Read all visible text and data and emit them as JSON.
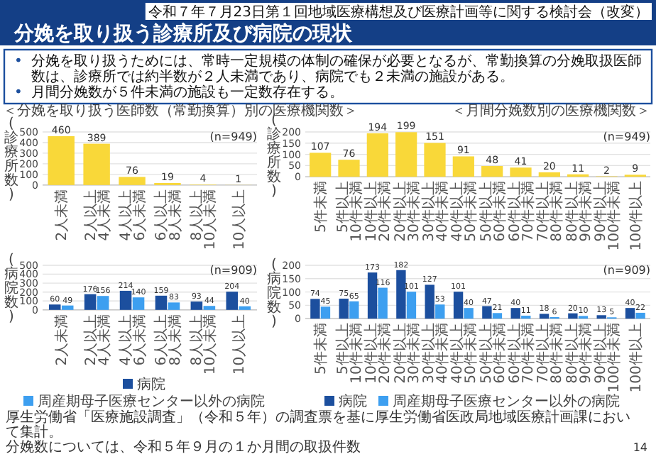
{
  "chart_data": [
    {
      "type": "other",
      "title": "分娩を取り扱う診療所及び病院の現状",
      "annotations": [
        "令和７年７月23日第１回地域医療構想及び医療計画等に関する検討会（改変）",
        "•分娩を取り扱うためには、常時一定規模の体制の確保が必要となるが、常勤換算の分娩取扱医師数は、診療所では約半数が２人未満であり、病院でも２未満の施設がある。",
        "•月間分娩数が５件未満の施設も一定数存在する。",
        "厚生労働省「医療施設調査」（令和５年）の調査票を基に厚生労働省医政局地域医療計画課において集計。",
        "分娩数については、令和５年９月の１か月間の取扱件数",
        "14"
      ]
    },
    {
      "type": "bar",
      "title": "＜分娩を取り扱う医師数（常勤換算）別の医療機関数＞",
      "ylabel": "(診療所数)",
      "categories": [
        "2人未満",
        "2人以上\n4人未満",
        "4人以上\n6人未満",
        "6人以上\n8人未満",
        "8人以上\n10人未満",
        "10人以上"
      ],
      "values": [
        460,
        389,
        76,
        19,
        4,
        1
      ],
      "color": "#f9d839",
      "ylim": [
        0,
        500
      ],
      "yticks": [
        0,
        100,
        200,
        300,
        400,
        500
      ],
      "grid": "y",
      "data_labels": true,
      "annotations": [
        "(n=949)"
      ]
    },
    {
      "type": "bar",
      "title": "＜月間分娩数別の医療機関数＞",
      "ylabel": "(診療所数)",
      "categories": [
        "5件未満",
        "5件以上\n10件未満",
        "10件以上\n20件未満",
        "20件以上\n30件未満",
        "30件以上\n40件未満",
        "40件以上\n50件未満",
        "50件以上\n60件未満",
        "60件以上\n70件未満",
        "70件以上\n80件未満",
        "80件以上\n90件未満",
        "90件以上\n100件未満",
        "100件以上"
      ],
      "values": [
        107,
        76,
        194,
        199,
        151,
        91,
        48,
        41,
        20,
        11,
        2,
        9
      ],
      "color": "#f9d839",
      "ylim": [
        0,
        200
      ],
      "yticks": [
        0,
        50,
        100,
        150,
        200
      ],
      "grid": "y",
      "data_labels": true,
      "annotations": [
        "(n=949)"
      ]
    },
    {
      "type": "bar",
      "ylabel": "(病院数)",
      "categories": [
        "2人未満",
        "2人以上\n4人未満",
        "4人以上\n6人未満",
        "6人以上\n8人未満",
        "8人以上\n10人未満",
        "10人以上"
      ],
      "series": [
        {
          "name": "病院",
          "color": "#1c4f9e",
          "values": [
            60,
            176,
            214,
            159,
            93,
            204
          ]
        },
        {
          "name": "周産期母子医療センター以外の病院",
          "color": "#3d9ff0",
          "values": [
            49,
            156,
            140,
            83,
            44,
            40
          ]
        }
      ],
      "ylim": [
        0,
        500
      ],
      "yticks": [
        0,
        100,
        200,
        300,
        400,
        500
      ],
      "grid": "y",
      "data_labels": true,
      "legend": "bottom",
      "annotations": [
        "(n=909)"
      ]
    },
    {
      "type": "bar",
      "ylabel": "(病院数)",
      "categories": [
        "5件未満",
        "5件以上\n10件未満",
        "10件以上\n20件未満",
        "20件以上\n30件未満",
        "30件以上\n40件未満",
        "40件以上\n50件未満",
        "50件以上\n60件未満",
        "60件以上\n70件未満",
        "70件以上\n80件未満",
        "80件以上\n90件未満",
        "90件以上\n100件未満",
        "100件以上"
      ],
      "series": [
        {
          "name": "病院",
          "color": "#1c4f9e",
          "values": [
            74,
            75,
            173,
            182,
            127,
            101,
            47,
            40,
            18,
            20,
            13,
            40
          ]
        },
        {
          "name": "周産期母子医療センター以外の病院",
          "color": "#3d9ff0",
          "values": [
            45,
            65,
            116,
            101,
            53,
            40,
            21,
            11,
            6,
            10,
            5,
            22
          ]
        }
      ],
      "ylim": [
        0,
        200
      ],
      "yticks": [
        0,
        50,
        100,
        150,
        200
      ],
      "grid": "y",
      "data_labels": true,
      "legend": "bottom",
      "annotations": [
        "(n=909)"
      ]
    }
  ]
}
